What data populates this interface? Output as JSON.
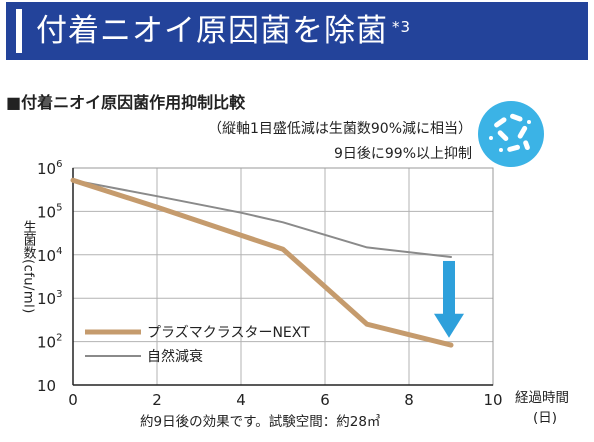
{
  "banner": {
    "title": "付着ニオイ原因菌を除菌",
    "footnote": "*3"
  },
  "subheading": "■付着ニオイ原因菌作用抑制比較",
  "notes": {
    "line1": "（縦軸1目盛低減は生菌数90%減に相当）",
    "line2": "9日後に99%以上抑制"
  },
  "badge_icon": "bacteria-icon",
  "caption": "約9日後の効果です。試験空間：約28㎥",
  "chart_data": {
    "type": "line",
    "ylabel_vertical": "生菌数",
    "ylabel_rotated": "(cfu/ml)",
    "xlabel": "経過時間",
    "xlabel_unit": "(日)",
    "xlim": [
      0,
      10
    ],
    "ylim": [
      1,
      6
    ],
    "y_scale": "log10",
    "x_ticks": [
      "0",
      "2",
      "4",
      "6",
      "8",
      "10"
    ],
    "y_ticks": [
      {
        "base": "10",
        "exp": "6",
        "value": 6
      },
      {
        "base": "10",
        "exp": "5",
        "value": 5
      },
      {
        "base": "10",
        "exp": "4",
        "value": 4
      },
      {
        "base": "10",
        "exp": "3",
        "value": 3
      },
      {
        "base": "10",
        "exp": "2",
        "value": 2
      },
      {
        "base": "10",
        "exp": "",
        "value": 1
      }
    ],
    "grid": true,
    "legend_position": "bottom-left",
    "series": [
      {
        "name": "プラズマクラスターNEXT",
        "color": "#c59b6d",
        "points": [
          [
            0,
            5.72
          ],
          [
            2,
            5.1
          ],
          [
            4,
            4.45
          ],
          [
            5,
            4.13
          ],
          [
            7,
            2.4
          ],
          [
            9,
            1.92
          ]
        ]
      },
      {
        "name": "自然減衰",
        "color": "#8a8a8a",
        "points": [
          [
            0,
            5.72
          ],
          [
            2,
            5.35
          ],
          [
            4,
            4.97
          ],
          [
            5,
            4.75
          ],
          [
            7,
            4.17
          ],
          [
            9,
            3.95
          ]
        ]
      }
    ],
    "arrow": {
      "color": "#2ea0db",
      "x": 9,
      "from": 3.95,
      "to": 1.95
    }
  }
}
